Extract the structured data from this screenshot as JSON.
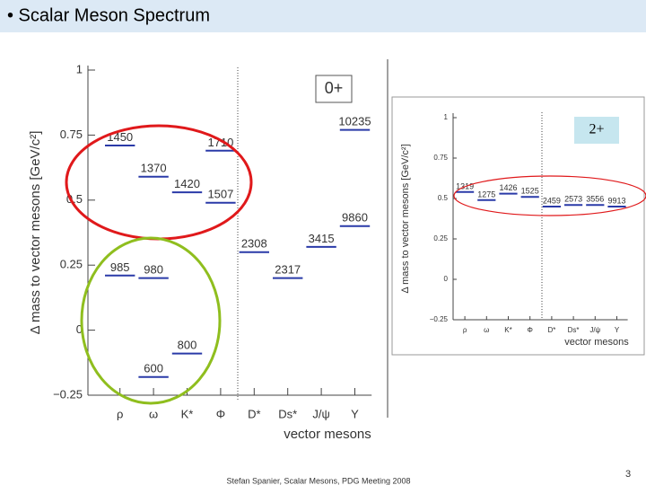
{
  "slide": {
    "title": "• Scalar Meson Spectrum",
    "footer": "Stefan Spanier,  Scalar Mesons, PDG Meeting 2008",
    "page_number": "3"
  },
  "chart_data": [
    {
      "type": "level",
      "badge": "0+",
      "y_label": "Δ mass to vector mesons [GeV/c²]",
      "x_label": "vector mesons",
      "categories": [
        "ρ",
        "ω",
        "K*",
        "Φ",
        "D*",
        "Ds*",
        "J/ψ",
        "Υ"
      ],
      "ylim": [
        -0.25,
        1
      ],
      "yticks": [
        {
          "value": -0.25,
          "label": "−0.25"
        },
        0,
        0.25,
        0.5,
        0.75,
        1
      ],
      "color": "#2a3aa8",
      "levels": [
        {
          "category": "ρ",
          "label": "1450",
          "value": 0.71
        },
        {
          "category": "ω",
          "label": "1370",
          "value": 0.59
        },
        {
          "category": "K*",
          "label": "1420",
          "value": 0.53
        },
        {
          "category": "Φ",
          "label": "1710",
          "value": 0.69
        },
        {
          "category": "Φ",
          "label": "1507",
          "value": 0.49
        },
        {
          "category": "D*",
          "label": "2308",
          "value": 0.3
        },
        {
          "category": "Ds*",
          "label": "2317",
          "value": 0.2
        },
        {
          "category": "J/ψ",
          "label": "3415",
          "value": 0.32
        },
        {
          "category": "Υ",
          "label": "9860",
          "value": 0.4
        },
        {
          "category": "Υ",
          "label": "10235",
          "value": 0.77
        },
        {
          "category": "ρ",
          "label": "985",
          "value": 0.21
        },
        {
          "category": "ω",
          "label": "980",
          "value": 0.2
        },
        {
          "category": "ω",
          "label": "600",
          "value": -0.18
        },
        {
          "category": "K*",
          "label": "800",
          "value": -0.09
        }
      ]
    },
    {
      "type": "level",
      "badge": "2+",
      "y_label": "Δ mass to vector mesons [GeV/c²]",
      "x_label": "vector mesons",
      "categories": [
        "ρ",
        "ω",
        "K*",
        "Φ",
        "D*",
        "Ds*",
        "J/ψ",
        "Υ"
      ],
      "ylim": [
        -0.25,
        1
      ],
      "yticks": [
        {
          "value": -0.25,
          "label": "−0.25"
        },
        0,
        0.25,
        0.5,
        0.75,
        1
      ],
      "color": "#2a3aa8",
      "levels": [
        {
          "category": "ρ",
          "label": "1319",
          "value": 0.54
        },
        {
          "category": "ω",
          "label": "1275",
          "value": 0.49
        },
        {
          "category": "K*",
          "label": "1426",
          "value": 0.53
        },
        {
          "category": "Φ",
          "label": "1525",
          "value": 0.51
        },
        {
          "category": "D*",
          "label": "2459",
          "value": 0.45
        },
        {
          "category": "Ds*",
          "label": "2573",
          "value": 0.46
        },
        {
          "category": "J/ψ",
          "label": "3556",
          "value": 0.46
        },
        {
          "category": "Υ",
          "label": "9913",
          "value": 0.45
        }
      ]
    }
  ]
}
